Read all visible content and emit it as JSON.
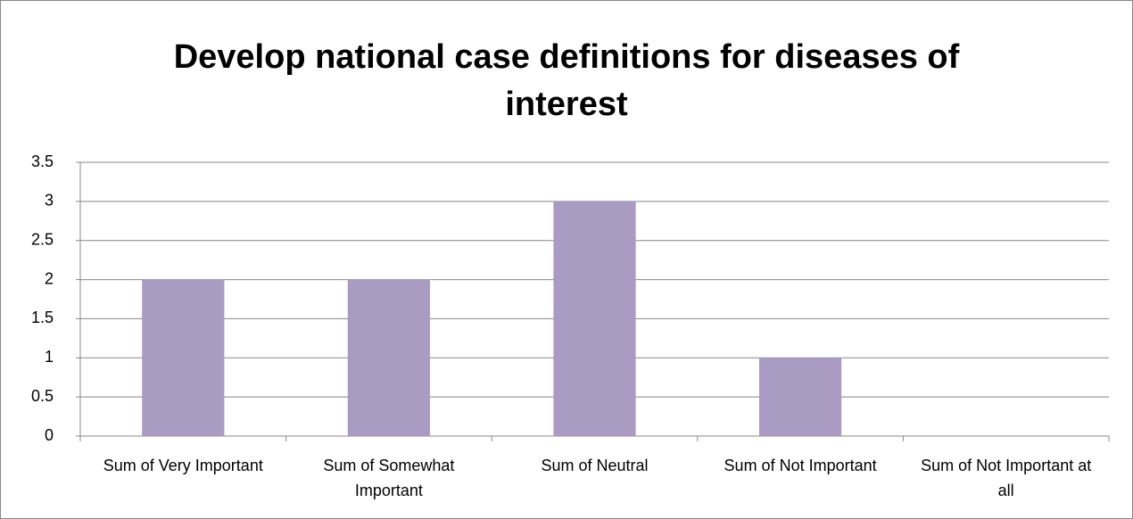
{
  "chart_data": {
    "type": "bar",
    "title": "Develop national case definitions for diseases of interest",
    "categories": [
      "Sum of Very Important",
      "Sum of Somewhat Important",
      "Sum of Neutral",
      "Sum of Not Important",
      "Sum of Not Important at all"
    ],
    "values": [
      2,
      2,
      3,
      1,
      0
    ],
    "color": "#a99bc1",
    "ylim": [
      0,
      3.5
    ],
    "yticks": [
      0,
      0.5,
      1,
      1.5,
      2,
      2.5,
      3,
      3.5
    ],
    "grid": true
  }
}
